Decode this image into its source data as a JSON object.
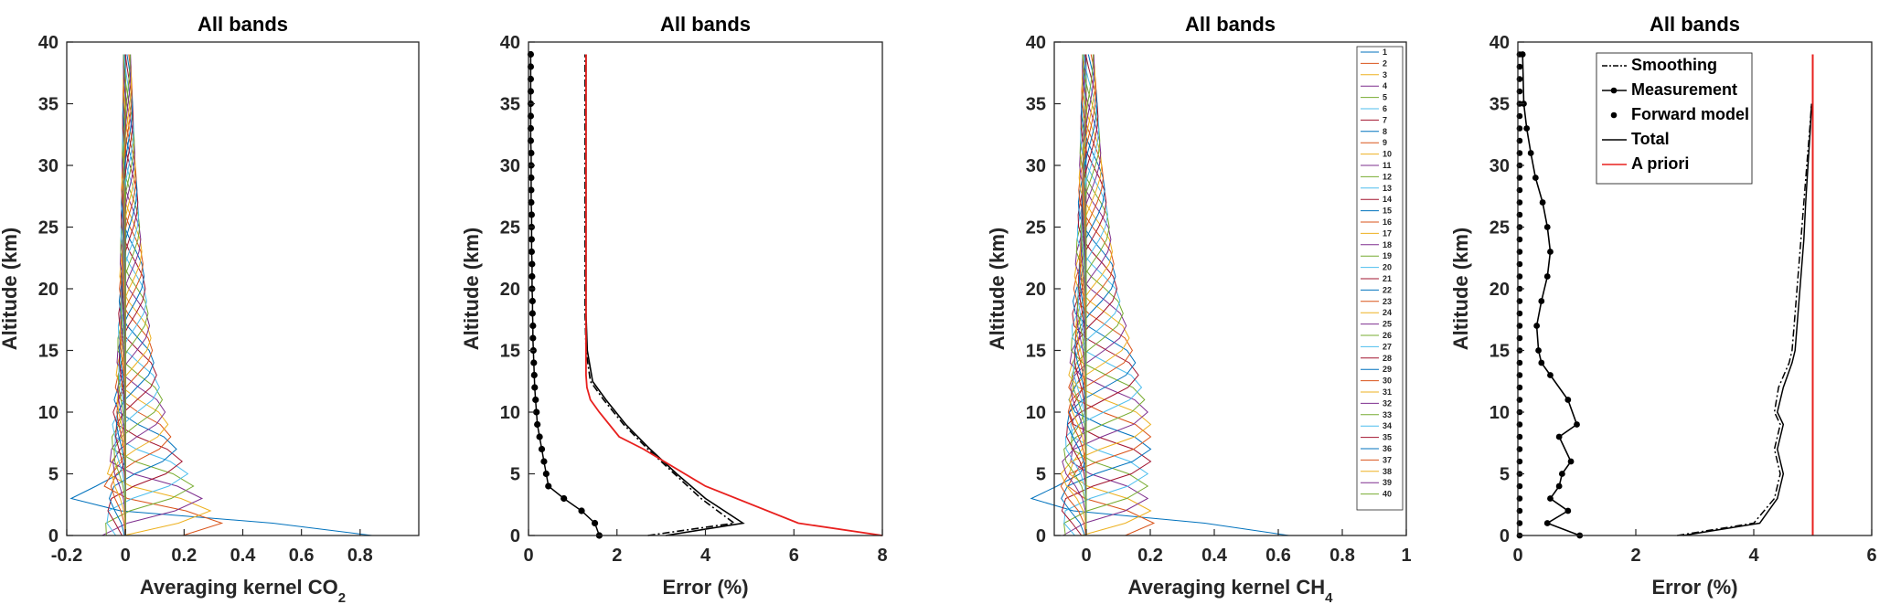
{
  "chart_data": [
    {
      "type": "line",
      "title": "All bands",
      "xlabel": "Averaging kernel CO",
      "xlabel_sub": "2",
      "ylabel": "Altitude (km)",
      "xlim": [
        -0.2,
        1.0
      ],
      "ylim": [
        0,
        40
      ],
      "xticks": [
        "-0.2",
        "0",
        "0.2",
        "0.4",
        "0.6",
        "0.8"
      ],
      "yticks": [
        "0",
        "5",
        "10",
        "15",
        "20",
        "25",
        "30",
        "35",
        "40"
      ],
      "grid": false,
      "altitude_km": [
        0,
        1,
        2,
        3,
        4,
        5,
        6,
        7,
        8,
        9,
        10,
        11,
        12,
        13,
        14,
        15,
        16,
        17,
        18,
        19,
        20,
        21,
        22,
        23,
        24,
        25,
        26,
        27,
        28,
        29,
        30,
        31,
        32,
        33,
        34,
        35,
        36,
        37,
        38,
        39
      ],
      "kernel_rows": 40,
      "kernel_peak_values": [
        0.87,
        0.34,
        0.3,
        0.27,
        0.24,
        0.22,
        0.2,
        0.18,
        0.16,
        0.15,
        0.14,
        0.13,
        0.12,
        0.11,
        0.1,
        0.095,
        0.09,
        0.085,
        0.08,
        0.075,
        0.07,
        0.066,
        0.062,
        0.058,
        0.054,
        0.05,
        0.047,
        0.044,
        0.041,
        0.038,
        0.035,
        0.033,
        0.031,
        0.029,
        0.027,
        0.025,
        0.023,
        0.021,
        0.019,
        0.017
      ]
    },
    {
      "type": "line",
      "title": "All bands",
      "xlabel": "Error (%)",
      "xlim": [
        0,
        8
      ],
      "ylim": [
        0,
        40
      ],
      "xticks": [
        "0",
        "2",
        "4",
        "6",
        "8"
      ],
      "yticks": [
        "0",
        "5",
        "10",
        "15",
        "20",
        "25",
        "30",
        "35",
        "40"
      ],
      "grid": false,
      "series": [
        {
          "style": "dashdot",
          "color": "#000000",
          "x": [
            2.7,
            4.65,
            3.9,
            3.3,
            2.7,
            2.15,
            1.7,
            1.4,
            1.3,
            1.28,
            1.28,
            1.28,
            1.28,
            1.28,
            1.28,
            1.28
          ],
          "y": [
            0,
            1,
            3,
            5,
            7,
            9,
            11,
            12.5,
            15,
            18,
            21,
            25,
            29,
            33,
            36,
            39
          ]
        },
        {
          "style": "dot-markers",
          "color": "#000000",
          "x": [
            1.6,
            1.5,
            1.2,
            0.8,
            0.45,
            0.4,
            0.35,
            0.3,
            0.25,
            0.2,
            0.18,
            0.16,
            0.14,
            0.13,
            0.12,
            0.11,
            0.1,
            0.1,
            0.09,
            0.09,
            0.08,
            0.08,
            0.08,
            0.07,
            0.07,
            0.07,
            0.07,
            0.06,
            0.06,
            0.06,
            0.06,
            0.06,
            0.05,
            0.05,
            0.05,
            0.05,
            0.05,
            0.05,
            0.05,
            0.05
          ],
          "y": [
            0,
            1,
            2,
            3,
            4,
            5,
            6,
            7,
            8,
            9,
            10,
            11,
            12,
            13,
            14,
            15,
            16,
            17,
            18,
            19,
            20,
            21,
            22,
            23,
            24,
            25,
            26,
            27,
            28,
            29,
            30,
            31,
            32,
            33,
            34,
            35,
            36,
            37,
            38,
            39
          ]
        },
        {
          "style": "solid",
          "color": "#000000",
          "x": [
            3.1,
            4.85,
            4.0,
            3.35,
            2.75,
            2.2,
            1.75,
            1.45,
            1.33,
            1.3,
            1.3,
            1.3,
            1.3,
            1.3,
            1.3,
            1.3
          ],
          "y": [
            0,
            1,
            3,
            5,
            7,
            9,
            11,
            12.5,
            15,
            18,
            21,
            25,
            29,
            33,
            36,
            39
          ]
        },
        {
          "style": "solid",
          "color": "#e8201e",
          "x": [
            8,
            6.1,
            4.0,
            2.6,
            2.05,
            1.6,
            1.4,
            1.32,
            1.3,
            1.3,
            1.3,
            1.3,
            1.3,
            1.3
          ],
          "y": [
            0,
            1,
            4,
            7,
            8,
            10,
            11,
            12,
            13,
            15,
            20,
            25,
            30,
            39
          ]
        }
      ]
    },
    {
      "type": "line",
      "title": "All bands",
      "xlabel": "Averaging kernel CH",
      "xlabel_sub": "4",
      "ylabel": "Altitude (km)",
      "xlim": [
        -0.1,
        1.0
      ],
      "ylim": [
        0,
        40
      ],
      "xticks": [
        "0",
        "0.2",
        "0.4",
        "0.6",
        "0.8",
        "1"
      ],
      "yticks": [
        "0",
        "5",
        "10",
        "15",
        "20",
        "25",
        "30",
        "35",
        "40"
      ],
      "grid": false,
      "legend": {
        "placement": "right",
        "entries": [
          "1",
          "2",
          "3",
          "4",
          "5",
          "6",
          "7",
          "8",
          "9",
          "10",
          "11",
          "12",
          "13",
          "14",
          "15",
          "16",
          "17",
          "18",
          "19",
          "20",
          "21",
          "22",
          "23",
          "24",
          "25",
          "26",
          "27",
          "28",
          "29",
          "30",
          "31",
          "32",
          "33",
          "34",
          "35",
          "36",
          "37",
          "38",
          "39",
          "40"
        ]
      },
      "altitude_km": [
        0,
        1,
        2,
        3,
        4,
        5,
        6,
        7,
        8,
        9,
        10,
        11,
        12,
        13,
        14,
        15,
        16,
        17,
        18,
        19,
        20,
        21,
        22,
        23,
        24,
        25,
        26,
        27,
        28,
        29,
        30,
        31,
        32,
        33,
        34,
        35,
        36,
        37,
        38,
        39
      ],
      "kernel_rows": 40,
      "kernel_peak_values": [
        0.66,
        0.22,
        0.21,
        0.2,
        0.2,
        0.2,
        0.21,
        0.21,
        0.21,
        0.21,
        0.2,
        0.19,
        0.18,
        0.17,
        0.16,
        0.15,
        0.14,
        0.13,
        0.12,
        0.11,
        0.1,
        0.095,
        0.09,
        0.085,
        0.08,
        0.075,
        0.07,
        0.065,
        0.06,
        0.055,
        0.05,
        0.047,
        0.044,
        0.041,
        0.038,
        0.035,
        0.032,
        0.029,
        0.026,
        0.023
      ]
    },
    {
      "type": "line",
      "title": "All bands",
      "xlabel": "Error (%)",
      "ylabel": "Altitude (km)",
      "xlim": [
        0,
        6
      ],
      "ylim": [
        0,
        40
      ],
      "xticks": [
        "0",
        "2",
        "4",
        "6"
      ],
      "yticks": [
        "0",
        "5",
        "10",
        "15",
        "20",
        "25",
        "30",
        "35",
        "40"
      ],
      "grid": false,
      "legend": {
        "placement": "top",
        "entries": [
          "Smoothing",
          "Measurement",
          "Forward model",
          "Total",
          "A priori"
        ]
      },
      "series": [
        {
          "name": "Smoothing",
          "style": "dashdot",
          "color": "#000000",
          "x": [
            2.7,
            4.0,
            4.35,
            4.45,
            4.35,
            4.45,
            4.35,
            4.42,
            4.6,
            4.65,
            4.7,
            4.75,
            4.8,
            4.85,
            4.9,
            4.95,
            4.98
          ],
          "y": [
            0,
            1,
            3,
            5,
            7,
            9,
            10,
            12,
            14,
            15,
            18,
            21,
            24,
            27,
            30,
            33,
            35
          ]
        },
        {
          "name": "Measurement",
          "style": "line-markers",
          "color": "#000000",
          "x": [
            1.05,
            0.5,
            0.85,
            0.55,
            0.7,
            0.75,
            0.9,
            0.7,
            1.0,
            0.85,
            0.55,
            0.4,
            0.35,
            0.32,
            0.4,
            0.5,
            0.55,
            0.5,
            0.42,
            0.3,
            0.22,
            0.15,
            0.1,
            0.08
          ],
          "y": [
            0,
            1,
            2,
            3,
            4,
            5,
            6,
            8,
            9,
            11,
            13,
            14,
            15,
            17,
            19,
            21,
            23,
            25,
            27,
            29,
            31,
            33,
            35,
            39
          ]
        },
        {
          "name": "Forward model",
          "style": "dots",
          "color": "#000000",
          "x": [
            0.03,
            0.03,
            0.03,
            0.03,
            0.03,
            0.03,
            0.03,
            0.03,
            0.03,
            0.03,
            0.03,
            0.03,
            0.03,
            0.03,
            0.03,
            0.03,
            0.03,
            0.03,
            0.03,
            0.03,
            0.03,
            0.03,
            0.03,
            0.03,
            0.03,
            0.03,
            0.03,
            0.03,
            0.03,
            0.03,
            0.03,
            0.03,
            0.03,
            0.03,
            0.03,
            0.03,
            0.03,
            0.03,
            0.03,
            0.03
          ],
          "y": [
            0,
            1,
            2,
            3,
            4,
            5,
            6,
            7,
            8,
            9,
            10,
            11,
            12,
            13,
            14,
            15,
            16,
            17,
            18,
            19,
            20,
            21,
            22,
            23,
            24,
            25,
            26,
            27,
            28,
            29,
            30,
            31,
            32,
            33,
            34,
            35,
            36,
            37,
            38,
            39
          ]
        },
        {
          "name": "Total",
          "style": "solid",
          "color": "#000000",
          "x": [
            2.8,
            4.1,
            4.4,
            4.5,
            4.4,
            4.5,
            4.4,
            4.5,
            4.65,
            4.7,
            4.75,
            4.8,
            4.85,
            4.88,
            4.92,
            4.96,
            4.98
          ],
          "y": [
            0,
            1,
            3,
            5,
            7,
            9,
            10,
            12,
            14,
            15,
            18,
            21,
            24,
            27,
            30,
            33,
            35
          ]
        },
        {
          "name": "A priori",
          "style": "solid",
          "color": "#e8201e",
          "x": [
            5,
            5
          ],
          "y": [
            0,
            39
          ]
        }
      ]
    }
  ]
}
